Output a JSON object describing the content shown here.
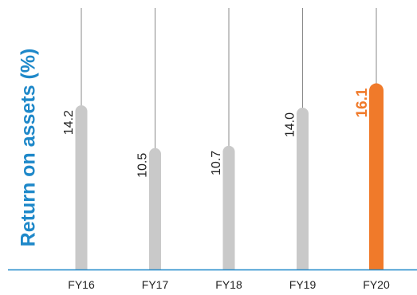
{
  "chart_data": {
    "type": "bar",
    "title": "",
    "xlabel": "",
    "ylabel": "Return on assets (%)",
    "categories": [
      "FY16",
      "FY17",
      "FY18",
      "FY19",
      "FY20"
    ],
    "values": [
      14.2,
      10.5,
      10.7,
      14.0,
      16.1
    ],
    "value_labels": [
      "14.2",
      "10.5",
      "10.7",
      "14.0",
      "16.1"
    ],
    "highlight_category": "FY20",
    "ylim": [
      0,
      18
    ],
    "grid": false,
    "legend": "none",
    "colors": {
      "bar": "#c9c9c9",
      "highlight_bar": "#f07a2a",
      "highlight_label": "#f07a2a",
      "axis_line": "#1e88c9",
      "ylabel": "#1e88c9",
      "stem": "#8a8a8a"
    }
  }
}
